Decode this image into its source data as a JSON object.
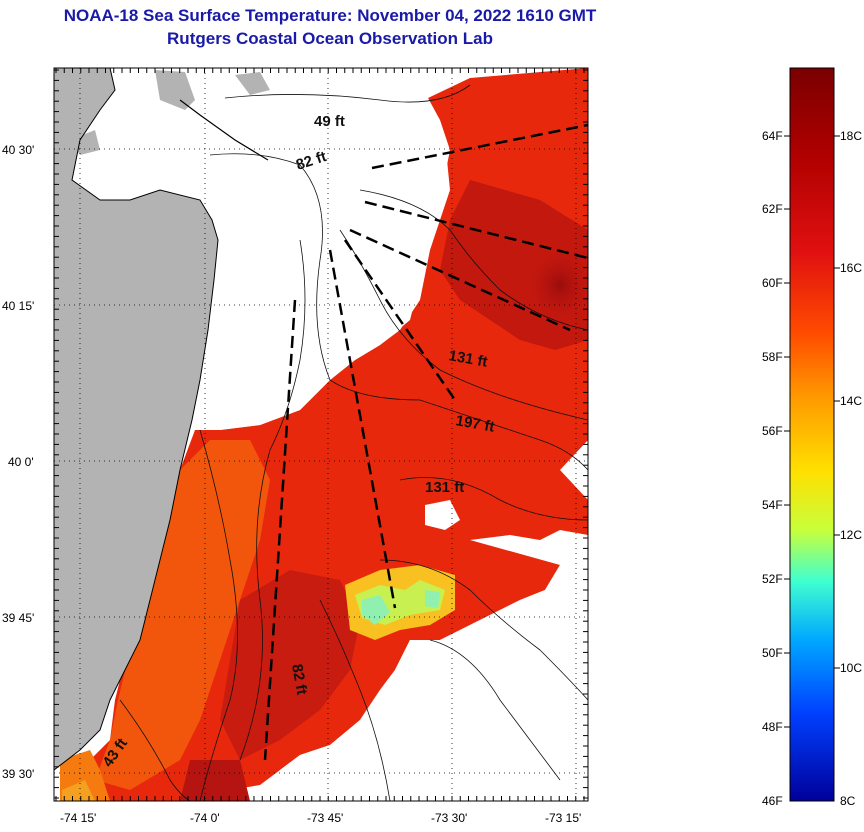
{
  "title": "NOAA-18 Sea Surface Temperature:  November 04, 2022 1610 GMT",
  "subtitle": "Rutgers Coastal Ocean Observation Lab",
  "axes": {
    "lat_ticks": [
      "40 30'",
      "40 15'",
      "40 0'",
      "39 45'",
      "39 30'"
    ],
    "lon_ticks": [
      "-74 15'",
      "-74 0'",
      "-73 45'",
      "-73 30'",
      "-73 15'"
    ]
  },
  "depth_labels": [
    "49 ft",
    "82 ft",
    "131 ft",
    "197 ft",
    "131 ft",
    "82 ft",
    "43 ft"
  ],
  "colorbar": {
    "f_labels": [
      "64F",
      "62F",
      "60F",
      "58F",
      "56F",
      "54F",
      "52F",
      "50F",
      "48F",
      "46F"
    ],
    "c_labels": [
      "18C",
      "16C",
      "14C",
      "12C",
      "10C",
      "8C"
    ],
    "colors": [
      "#7a0000",
      "#b00000",
      "#e01010",
      "#ff4a00",
      "#ff9a00",
      "#ffe000",
      "#c8ff3a",
      "#40ffd0",
      "#00a8ff",
      "#0040ff",
      "#00009a"
    ]
  },
  "colors": {
    "land": "#b3b3b3",
    "warm": "#e8280c",
    "hot": "#b81010",
    "mid": "#f05a0c",
    "cool": "#f8c020",
    "cold": "#90f0a0",
    "title": "#1a1aa8"
  }
}
